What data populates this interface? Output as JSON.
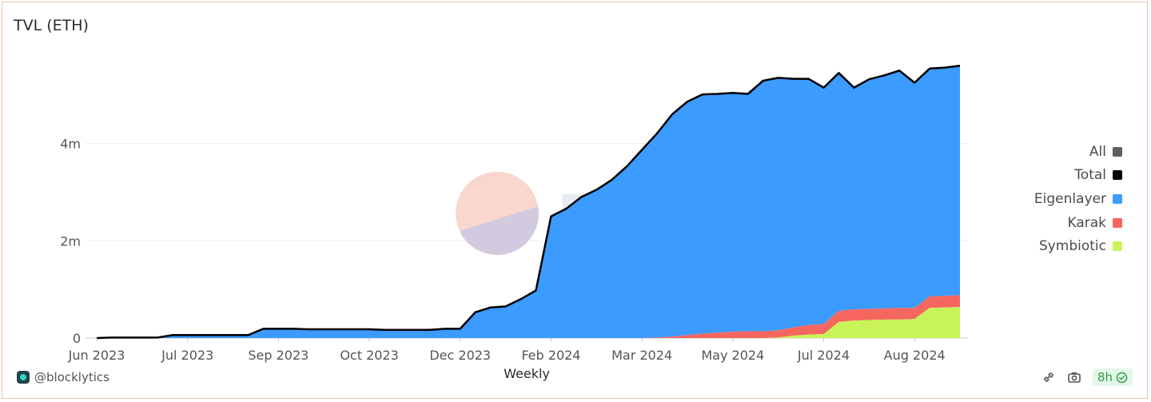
{
  "chart_data": {
    "type": "area",
    "title": "TVL (ETH)",
    "xlabel": "Weekly",
    "ylabel": "",
    "ylim": [
      0,
      5800000
    ],
    "y_ticks": [
      0,
      2000000,
      4000000
    ],
    "y_tick_labels": [
      "0",
      "2m",
      "4m"
    ],
    "x_tick_labels": [
      "Jun 2023",
      "Jul 2023",
      "Sep 2023",
      "Oct 2023",
      "Dec 2023",
      "Feb 2024",
      "Mar 2024",
      "May 2024",
      "Jul 2024",
      "Aug 2024"
    ],
    "x_tick_weeks": [
      0,
      6,
      12,
      18,
      24,
      30,
      36,
      42,
      48,
      54
    ],
    "stacked": true,
    "legend_position": "right",
    "colors": {
      "All": "#5b5f66",
      "Total": "#000000",
      "Eigenlayer": "#3c9bff",
      "Karak": "#f5675e",
      "Symbiotic": "#c8f45a"
    },
    "legend": [
      "All",
      "Total",
      "Eigenlayer",
      "Karak",
      "Symbiotic"
    ],
    "series": [
      {
        "name": "Eigenlayer",
        "values": [
          0,
          10000,
          10000,
          10000,
          10000,
          60000,
          60000,
          60000,
          60000,
          60000,
          60000,
          190000,
          190000,
          190000,
          180000,
          180000,
          180000,
          180000,
          180000,
          170000,
          170000,
          170000,
          170000,
          190000,
          190000,
          530000,
          630000,
          650000,
          800000,
          980000,
          2500000,
          2660000,
          2900000,
          3050000,
          3250000,
          3530000,
          3870000,
          4200000,
          4570000,
          4800000,
          4920000,
          4910000,
          4910000,
          4880000,
          5150000,
          5190000,
          5110000,
          5060000,
          4860000,
          4890000,
          4560000,
          4720000,
          4790000,
          4880000,
          4630000,
          4680000,
          4690000,
          4720000
        ]
      },
      {
        "name": "Karak",
        "values": [
          0,
          0,
          0,
          0,
          0,
          0,
          0,
          0,
          0,
          0,
          0,
          0,
          0,
          0,
          0,
          0,
          0,
          0,
          0,
          0,
          0,
          0,
          0,
          0,
          0,
          0,
          0,
          0,
          0,
          0,
          0,
          0,
          0,
          0,
          0,
          0,
          0,
          10000,
          30000,
          60000,
          90000,
          110000,
          130000,
          140000,
          140000,
          150000,
          170000,
          200000,
          210000,
          230000,
          230000,
          230000,
          230000,
          240000,
          230000,
          240000,
          240000,
          240000
        ]
      },
      {
        "name": "Symbiotic",
        "values": [
          0,
          0,
          0,
          0,
          0,
          0,
          0,
          0,
          0,
          0,
          0,
          0,
          0,
          0,
          0,
          0,
          0,
          0,
          0,
          0,
          0,
          0,
          0,
          0,
          0,
          0,
          0,
          0,
          0,
          0,
          0,
          0,
          0,
          0,
          0,
          0,
          0,
          0,
          0,
          0,
          0,
          0,
          0,
          0,
          0,
          10000,
          50000,
          70000,
          80000,
          330000,
          360000,
          370000,
          380000,
          380000,
          390000,
          620000,
          630000,
          640000
        ]
      }
    ]
  },
  "watermark": "Dune",
  "footer": {
    "handle": "@blocklytics",
    "refresh": "8h"
  }
}
